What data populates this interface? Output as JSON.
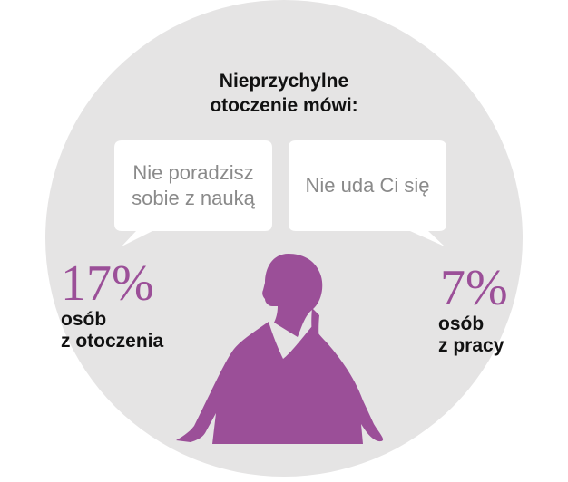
{
  "heading": {
    "line1": "Nieprzychylne",
    "line2": "otoczenie mówi:"
  },
  "bubbles": [
    {
      "lines": [
        "Nie poradzisz",
        "sobie z nauką"
      ]
    },
    {
      "lines": [
        "Nie uda Ci się"
      ]
    }
  ],
  "stats": [
    {
      "value": "17%",
      "label_lines": [
        "osób",
        "z otoczenia"
      ]
    },
    {
      "value": "7%",
      "label_lines": [
        "osób",
        "z pracy"
      ]
    }
  ],
  "colors": {
    "circle": "#e5e4e4",
    "bubble": "#ffffff",
    "accent": "#9b4f98",
    "bubble_text": "#8a8a8a",
    "heading_text": "#111111"
  },
  "icons": {
    "figure": "woman-silhouette-icon"
  }
}
